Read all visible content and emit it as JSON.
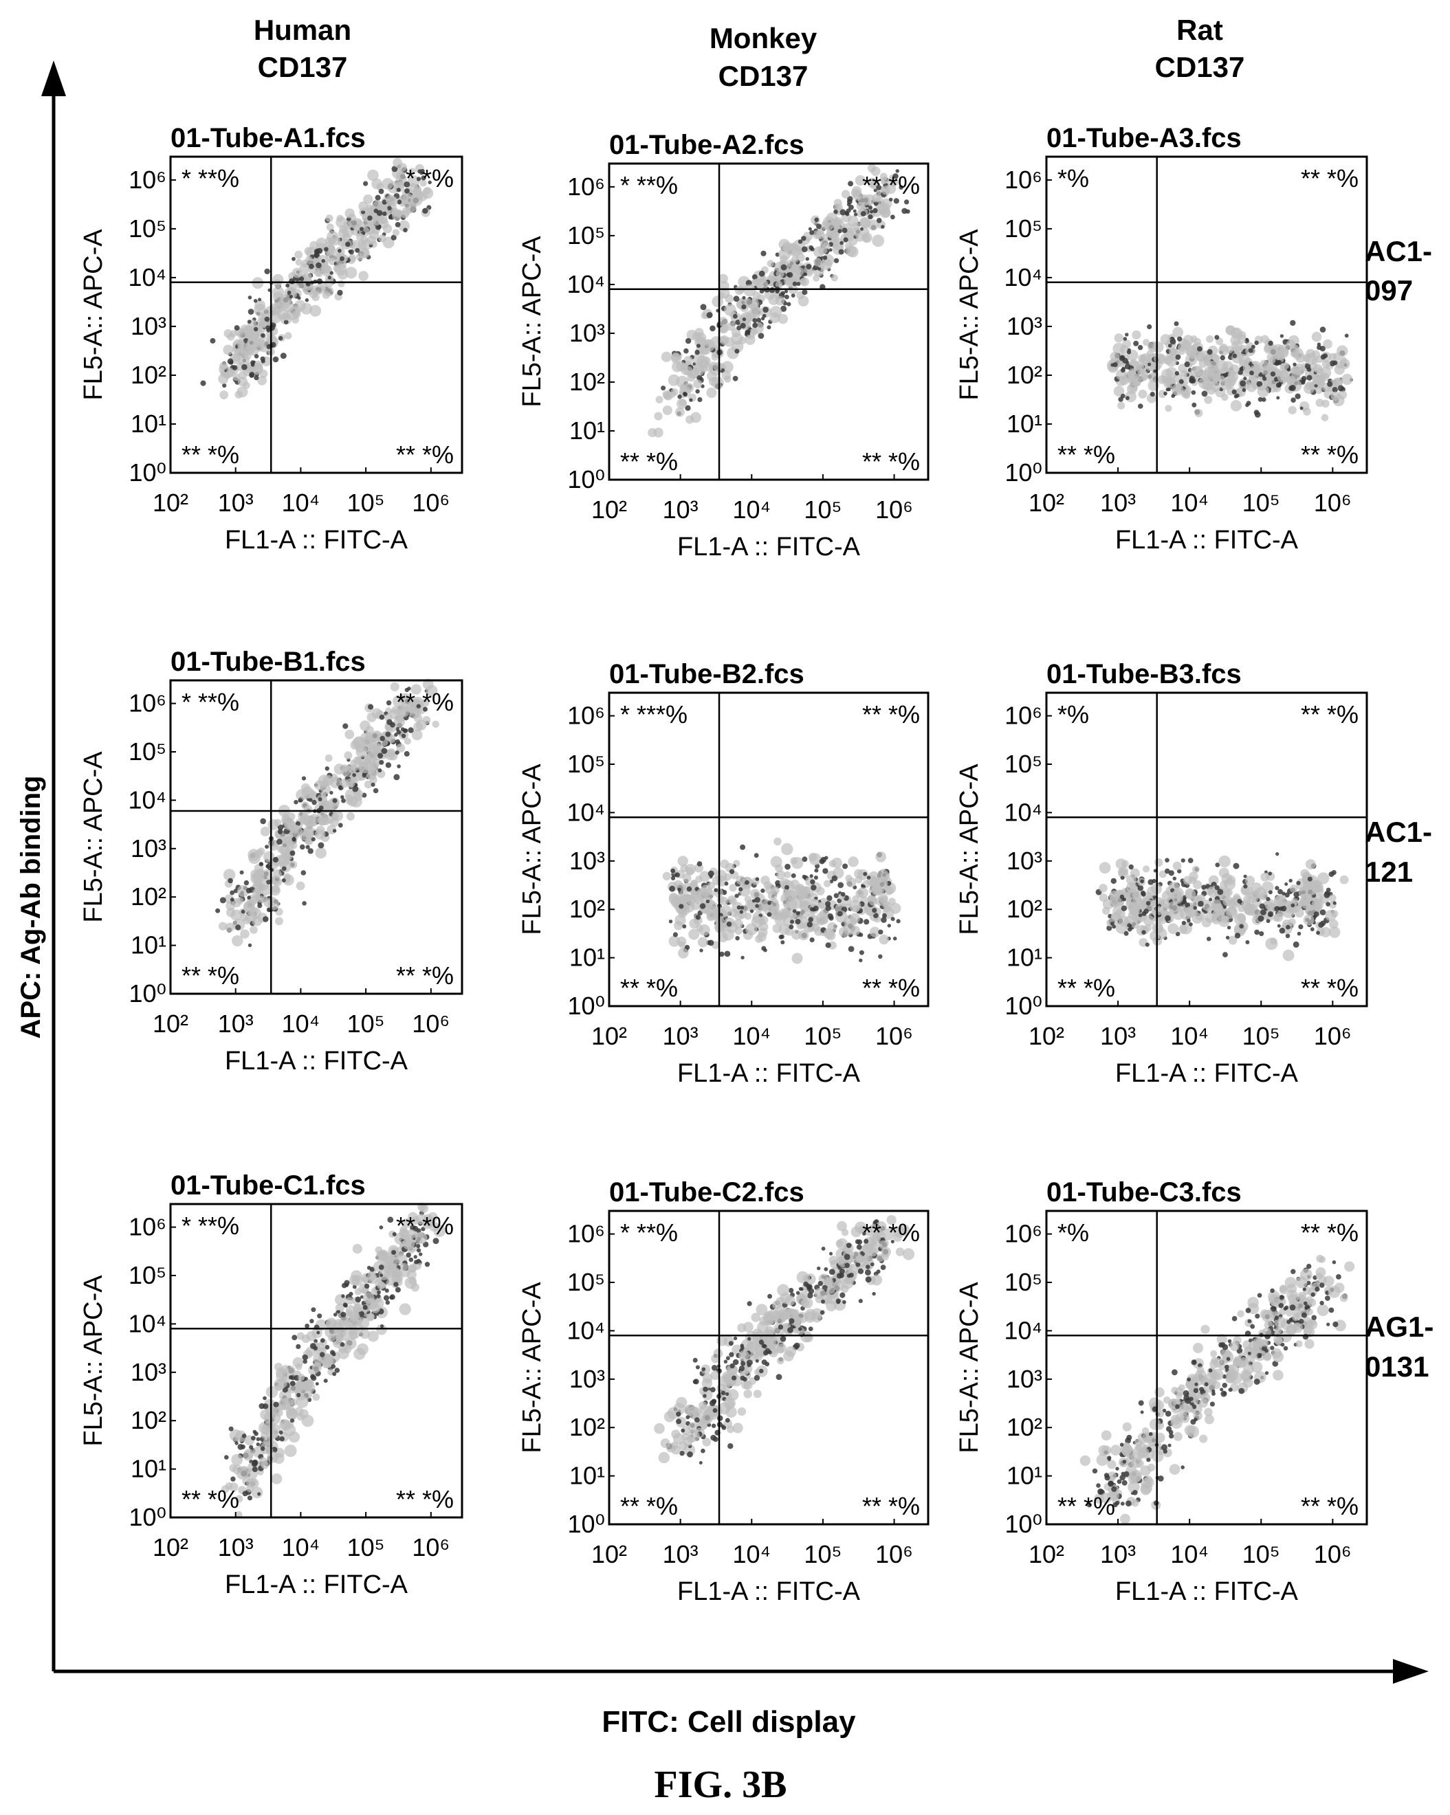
{
  "figure_label": "FIG. 3B",
  "x_axis_global_label": "FITC: Cell display",
  "y_axis_global_label": "APC: Ag-Ab binding",
  "columns": [
    {
      "line1": "Human",
      "line2": "CD137"
    },
    {
      "line1": "Monkey",
      "line2": "CD137"
    },
    {
      "line1": "Rat",
      "line2": "CD137"
    }
  ],
  "rows": [
    {
      "line1": "AC1-",
      "line2": "097"
    },
    {
      "line1": "AC1-",
      "line2": "121"
    },
    {
      "line1": "AG1-",
      "line2": "0131"
    }
  ],
  "colors": {
    "ink": "#000000",
    "dots": "#3a3a3a",
    "cloud": "#bdbdbd"
  },
  "chart_data": [
    {
      "type": "scatter",
      "title": "01-Tube-A1.fcs",
      "xlabel": "FL1-A :: FITC-A",
      "ylabel": "FL5-A:: APC-A",
      "x_scale": "log",
      "y_scale": "log",
      "xlim": [
        100,
        3000000
      ],
      "ylim": [
        1,
        3000000
      ],
      "x_ticks": [
        "10^2",
        "10^3",
        "10^4",
        "10^5",
        "10^6"
      ],
      "y_ticks": [
        "10^0",
        "10^1",
        "10^2",
        "10^3",
        "10^4",
        "10^5",
        "10^6"
      ],
      "gate": {
        "x": 3500,
        "y": 8000
      },
      "quadrant_labels": {
        "upper_left": "* **%",
        "upper_right": "* *%",
        "lower_left": "** *%",
        "lower_right": "** *%"
      },
      "population": {
        "shape": "diagonal",
        "x_range": [
          800,
          600000
        ],
        "y_range": [
          80,
          900000
        ]
      }
    },
    {
      "type": "scatter",
      "title": "01-Tube-A2.fcs",
      "xlabel": "FL1-A :: FITC-A",
      "ylabel": "FL5-A:: APC-A",
      "x_scale": "log",
      "y_scale": "log",
      "xlim": [
        100,
        3000000
      ],
      "ylim": [
        1,
        3000000
      ],
      "x_ticks": [
        "10^2",
        "10^3",
        "10^4",
        "10^5",
        "10^6"
      ],
      "y_ticks": [
        "10^0",
        "10^1",
        "10^2",
        "10^3",
        "10^4",
        "10^5",
        "10^6"
      ],
      "gate": {
        "x": 3500,
        "y": 8000
      },
      "quadrant_labels": {
        "upper_left": "* **%",
        "upper_right": "** *%",
        "lower_left": "** *%",
        "lower_right": "** *%"
      },
      "population": {
        "shape": "diagonal",
        "x_range": [
          700,
          900000
        ],
        "y_range": [
          30,
          1000000
        ]
      }
    },
    {
      "type": "scatter",
      "title": "01-Tube-A3.fcs",
      "xlabel": "FL1-A :: FITC-A",
      "ylabel": "FL5-A:: APC-A",
      "x_scale": "log",
      "y_scale": "log",
      "xlim": [
        100,
        3000000
      ],
      "ylim": [
        1,
        3000000
      ],
      "x_ticks": [
        "10^2",
        "10^3",
        "10^4",
        "10^5",
        "10^6"
      ],
      "y_ticks": [
        "10^0",
        "10^1",
        "10^2",
        "10^3",
        "10^4",
        "10^5",
        "10^6"
      ],
      "gate": {
        "x": 3500,
        "y": 8000
      },
      "quadrant_labels": {
        "upper_left": "*%",
        "upper_right": "** *%",
        "lower_left": "** *%",
        "lower_right": "** *%"
      },
      "population": {
        "shape": "horizontal",
        "x_range": [
          800,
          1500000
        ],
        "y_range": [
          5,
          1000
        ]
      }
    },
    {
      "type": "scatter",
      "title": "01-Tube-B1.fcs",
      "xlabel": "FL1-A :: FITC-A",
      "ylabel": "FL5-A:: APC-A",
      "x_scale": "log",
      "y_scale": "log",
      "xlim": [
        100,
        3000000
      ],
      "ylim": [
        1,
        3000000
      ],
      "x_ticks": [
        "10^2",
        "10^3",
        "10^4",
        "10^5",
        "10^6"
      ],
      "y_ticks": [
        "10^0",
        "10^1",
        "10^2",
        "10^3",
        "10^4",
        "10^5",
        "10^6"
      ],
      "gate": {
        "x": 3500,
        "y": 6000
      },
      "quadrant_labels": {
        "upper_left": "* **%",
        "upper_right": "** *%",
        "lower_left": "** *%",
        "lower_right": "** *%"
      },
      "population": {
        "shape": "diagonal",
        "x_range": [
          1000,
          700000
        ],
        "y_range": [
          20,
          1000000
        ]
      }
    },
    {
      "type": "scatter",
      "title": "01-Tube-B2.fcs",
      "xlabel": "FL1-A :: FITC-A",
      "ylabel": "FL5-A:: APC-A",
      "x_scale": "log",
      "y_scale": "log",
      "xlim": [
        100,
        3000000
      ],
      "ylim": [
        1,
        3000000
      ],
      "x_ticks": [
        "10^2",
        "10^3",
        "10^4",
        "10^5",
        "10^6"
      ],
      "y_ticks": [
        "10^0",
        "10^1",
        "10^2",
        "10^3",
        "10^4",
        "10^5",
        "10^6"
      ],
      "gate": {
        "x": 3500,
        "y": 8000
      },
      "quadrant_labels": {
        "upper_left": "* ***%",
        "upper_right": "** *%",
        "lower_left": "** *%",
        "lower_right": "** *%"
      },
      "population": {
        "shape": "horizontal",
        "x_range": [
          800,
          900000
        ],
        "y_range": [
          3,
          2000
        ]
      }
    },
    {
      "type": "scatter",
      "title": "01-Tube-B3.fcs",
      "xlabel": "FL1-A :: FITC-A",
      "ylabel": "FL5-A:: APC-A",
      "x_scale": "log",
      "y_scale": "log",
      "xlim": [
        100,
        3000000
      ],
      "ylim": [
        1,
        3000000
      ],
      "x_ticks": [
        "10^2",
        "10^3",
        "10^4",
        "10^5",
        "10^6"
      ],
      "y_ticks": [
        "10^0",
        "10^1",
        "10^2",
        "10^3",
        "10^4",
        "10^5",
        "10^6"
      ],
      "gate": {
        "x": 3500,
        "y": 8000
      },
      "quadrant_labels": {
        "upper_left": "*%",
        "upper_right": "** *%",
        "lower_left": "** *%",
        "lower_right": "** *%"
      },
      "population": {
        "shape": "horizontal",
        "x_range": [
          700,
          1000000
        ],
        "y_range": [
          5,
          1000
        ]
      }
    },
    {
      "type": "scatter",
      "title": "01-Tube-C1.fcs",
      "xlabel": "FL1-A :: FITC-A",
      "ylabel": "FL5-A:: APC-A",
      "x_scale": "log",
      "y_scale": "log",
      "xlim": [
        100,
        3000000
      ],
      "ylim": [
        1,
        3000000
      ],
      "x_ticks": [
        "10^2",
        "10^3",
        "10^4",
        "10^5",
        "10^6"
      ],
      "y_ticks": [
        "10^0",
        "10^1",
        "10^2",
        "10^3",
        "10^4",
        "10^5",
        "10^6"
      ],
      "gate": {
        "x": 3500,
        "y": 8000
      },
      "quadrant_labels": {
        "upper_left": "* **%",
        "upper_right": "** *%",
        "lower_left": "** *%",
        "lower_right": "** *%"
      },
      "population": {
        "shape": "diagonal",
        "x_range": [
          1000,
          900000
        ],
        "y_range": [
          2,
          1000000
        ]
      }
    },
    {
      "type": "scatter",
      "title": "01-Tube-C2.fcs",
      "xlabel": "FL1-A :: FITC-A",
      "ylabel": "FL5-A:: APC-A",
      "x_scale": "log",
      "y_scale": "log",
      "xlim": [
        100,
        3000000
      ],
      "ylim": [
        1,
        3000000
      ],
      "x_ticks": [
        "10^2",
        "10^3",
        "10^4",
        "10^5",
        "10^6"
      ],
      "y_ticks": [
        "10^0",
        "10^1",
        "10^2",
        "10^3",
        "10^4",
        "10^5",
        "10^6"
      ],
      "gate": {
        "x": 3500,
        "y": 8000
      },
      "quadrant_labels": {
        "upper_left": "* **%",
        "upper_right": "** *%",
        "lower_left": "** *%",
        "lower_right": "** *%"
      },
      "population": {
        "shape": "diagonal",
        "x_range": [
          800,
          800000
        ],
        "y_range": [
          30,
          1000000
        ]
      }
    },
    {
      "type": "scatter",
      "title": "01-Tube-C3.fcs",
      "xlabel": "FL1-A :: FITC-A",
      "ylabel": "FL5-A:: APC-A",
      "x_scale": "log",
      "y_scale": "log",
      "xlim": [
        100,
        3000000
      ],
      "ylim": [
        1,
        3000000
      ],
      "x_ticks": [
        "10^2",
        "10^3",
        "10^4",
        "10^5",
        "10^6"
      ],
      "y_ticks": [
        "10^0",
        "10^1",
        "10^2",
        "10^3",
        "10^4",
        "10^5",
        "10^6"
      ],
      "gate": {
        "x": 3500,
        "y": 8000
      },
      "quadrant_labels": {
        "upper_left": "*%",
        "upper_right": "** *%",
        "lower_left": "** *%",
        "lower_right": "** *%"
      },
      "population": {
        "shape": "diagonal",
        "x_range": [
          600,
          1000000
        ],
        "y_range": [
          3,
          100000
        ]
      }
    }
  ]
}
